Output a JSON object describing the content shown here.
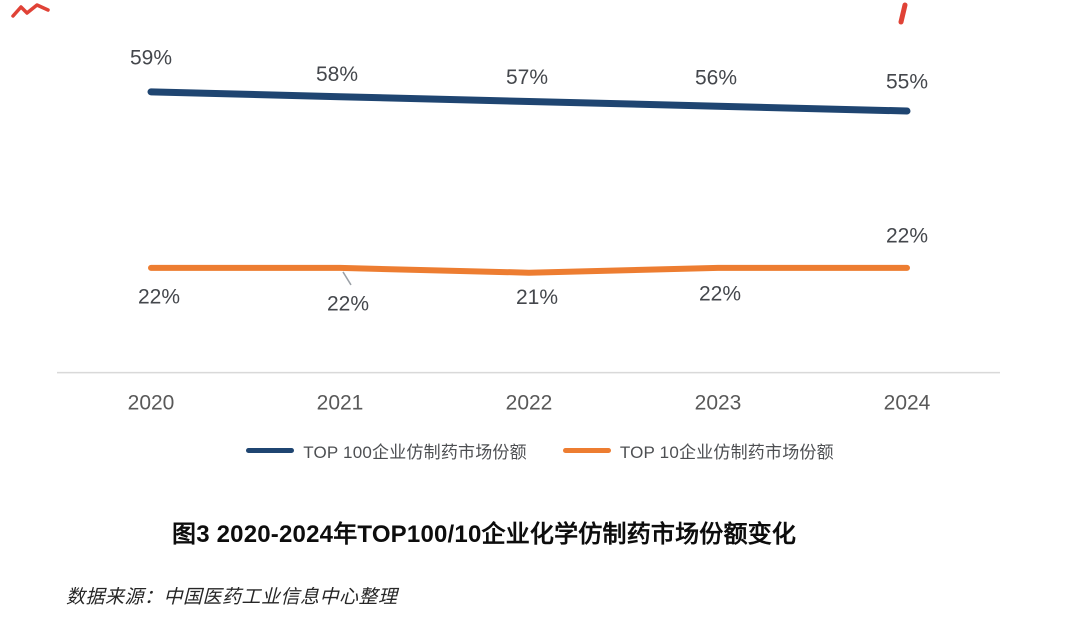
{
  "chart_data": {
    "type": "line",
    "title": "图3 2020-2024年TOP100/10企业化学仿制药市场份额变化",
    "categories": [
      "2020",
      "2021",
      "2022",
      "2023",
      "2024"
    ],
    "series": [
      {
        "name": "TOP 100企业仿制药市场份额",
        "color": "#1F4571",
        "values": [
          59,
          58,
          57,
          56,
          55
        ]
      },
      {
        "name": "TOP 10企业仿制药市场份额",
        "color": "#ED7D31",
        "values": [
          22,
          22,
          21,
          22,
          22
        ]
      }
    ],
    "value_suffix": "%",
    "data_label_color": "#44474c",
    "axis_line_color": "#D9D9D9",
    "tick_label_color": "#595959",
    "leader_line_color": "#9aa0a6",
    "grid": false,
    "legend_position": "bottom"
  },
  "caption": {
    "text": "图3 2020-2024年TOP100/10企业化学仿制药市场份额变化"
  },
  "source": {
    "text": "数据来源：中国医药工业信息中心整理"
  },
  "artifacts": {
    "red_mark_color": "#DE382B"
  }
}
